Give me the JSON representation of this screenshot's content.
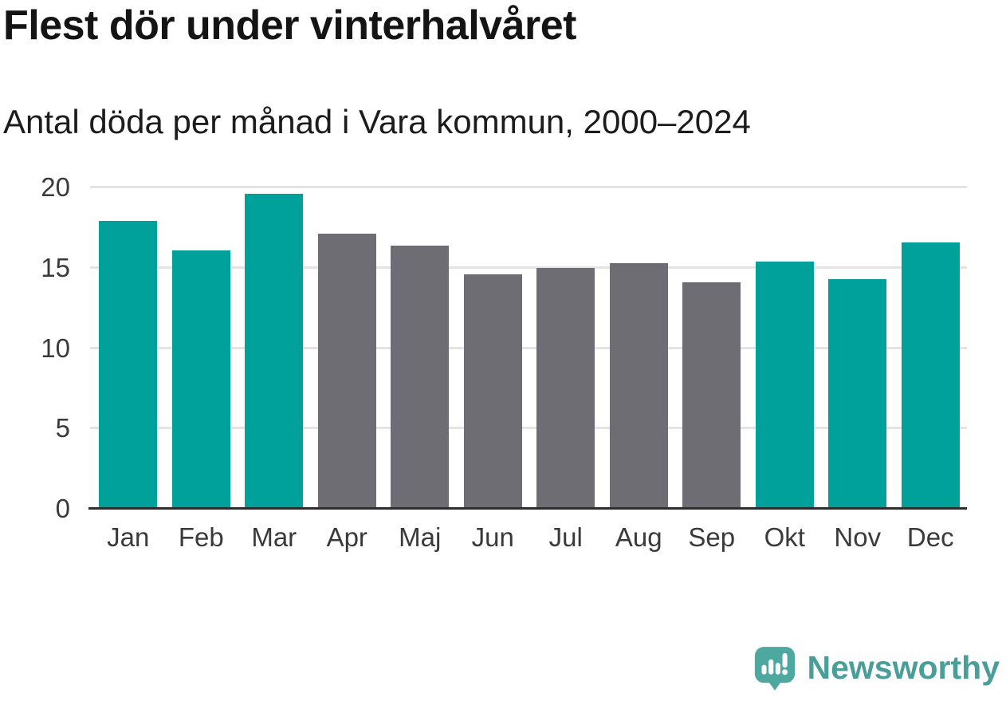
{
  "chart_data": {
    "type": "bar",
    "title": "Flest dör under vinterhalvåret",
    "subtitle": "Antal döda per månad i Vara kommun, 2000–2024",
    "categories": [
      "Jan",
      "Feb",
      "Mar",
      "Apr",
      "Maj",
      "Jun",
      "Jul",
      "Aug",
      "Sep",
      "Okt",
      "Nov",
      "Dec"
    ],
    "values": [
      17.9,
      16.1,
      19.6,
      17.1,
      16.4,
      14.6,
      15.0,
      15.3,
      14.1,
      15.4,
      14.3,
      16.6
    ],
    "bar_colors": [
      "winter",
      "winter",
      "winter",
      "summer",
      "summer",
      "summer",
      "summer",
      "summer",
      "summer",
      "winter",
      "winter",
      "winter"
    ],
    "palette": {
      "winter": "#00a19a",
      "summer": "#6d6d73"
    },
    "ylim": [
      0,
      20
    ],
    "yticks": [
      0,
      5,
      10,
      15,
      20
    ],
    "grid": true,
    "legend_position": "none",
    "xlabel": "",
    "ylabel": ""
  },
  "branding": {
    "name": "Newsworthy",
    "logo_icon": "speech-bubble-bar-chart-icon",
    "logo_color": "#4da8a0",
    "text_color": "#4a9e9a"
  },
  "style_colors": {
    "axis_line": "#2e2e2e",
    "gridline": "#e4e4e4",
    "background": "#ffffff"
  }
}
